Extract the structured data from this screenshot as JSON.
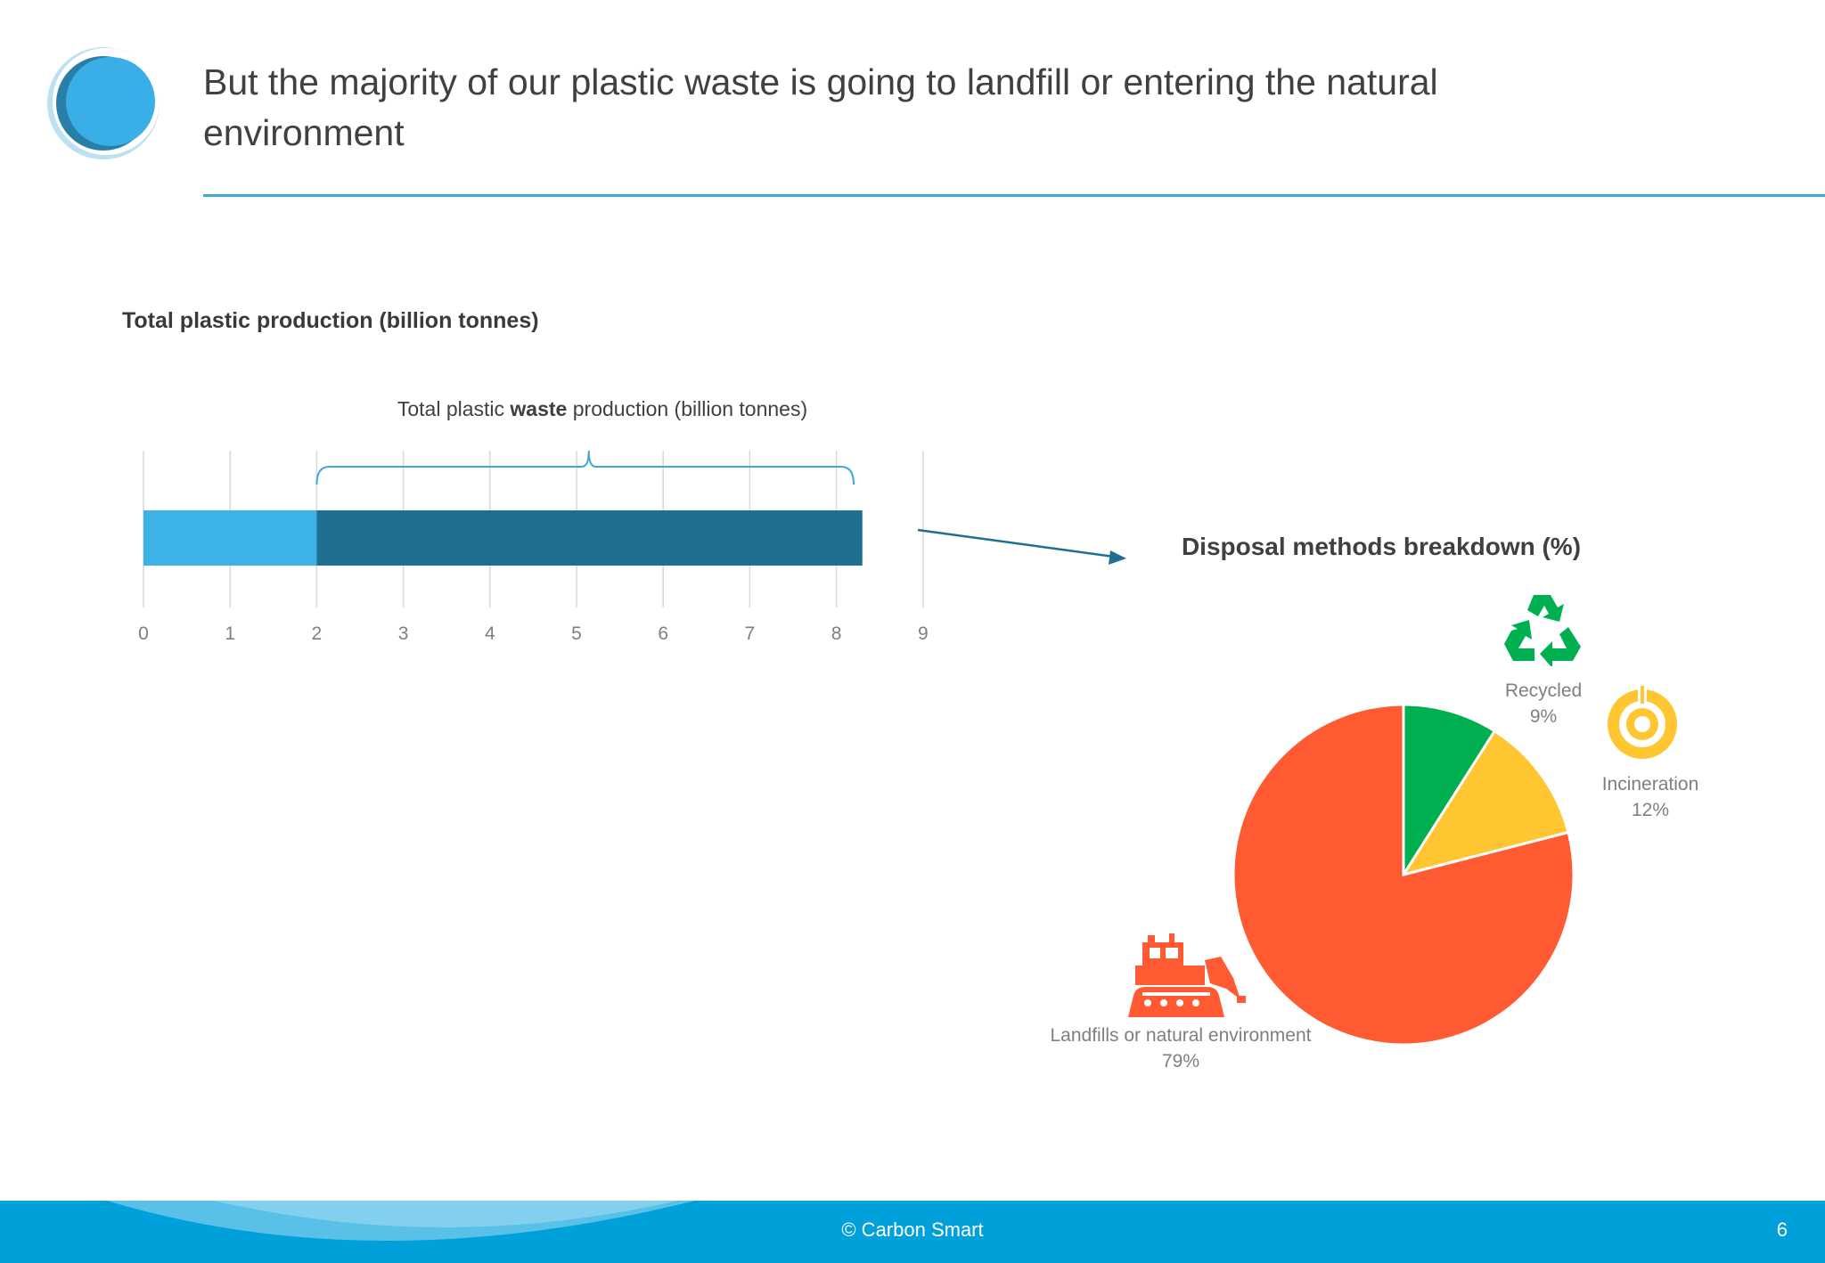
{
  "slide": {
    "title": "But the majority of our plastic waste is going to landfill or entering the natural environment"
  },
  "bar_section": {
    "title": "Total plastic production (billion tonnes)",
    "waste_label_pre": "Total plastic ",
    "waste_label_bold": "waste",
    "waste_label_post": " production (billion tonnes)"
  },
  "pie_section": {
    "title": "Disposal methods breakdown (%)"
  },
  "footer": {
    "copyright": "© Carbon Smart",
    "page_number": "6"
  },
  "icons": {
    "logo": "crescent-circle-logo",
    "recycled": "recycle-icon",
    "incineration": "incineration-icon",
    "landfill": "bulldozer-icon"
  },
  "colors": {
    "accent": "#3ea8d6",
    "bar_light": "#3db2e6",
    "bar_dark": "#1f7090",
    "recycled": "#00b050",
    "incineration": "#ffc632",
    "landfill": "#ff5a32",
    "footer": "#00a0da"
  },
  "chart_data": [
    {
      "type": "bar",
      "orientation": "horizontal",
      "stacked": true,
      "xlim": [
        0,
        9
      ],
      "ticks": [
        "0",
        "1",
        "2",
        "3",
        "4",
        "5",
        "6",
        "7",
        "8",
        "9"
      ],
      "grid": true,
      "segments": [
        {
          "start": 0,
          "end": 2,
          "color": "#3db2e6"
        },
        {
          "start": 2,
          "end": 8.3,
          "color": "#1f7090"
        }
      ],
      "bracket": {
        "start": 2,
        "end": 8.2
      }
    },
    {
      "type": "pie",
      "slices": [
        {
          "label": "Recycled",
          "value": 9,
          "value_label": "9%",
          "color": "#00b050"
        },
        {
          "label": "Incineration",
          "value": 12,
          "value_label": "12%",
          "color": "#ffc632"
        },
        {
          "label": "Landfills or natural environment",
          "value": 79,
          "value_label": "79%",
          "color": "#ff5a32"
        }
      ]
    }
  ]
}
